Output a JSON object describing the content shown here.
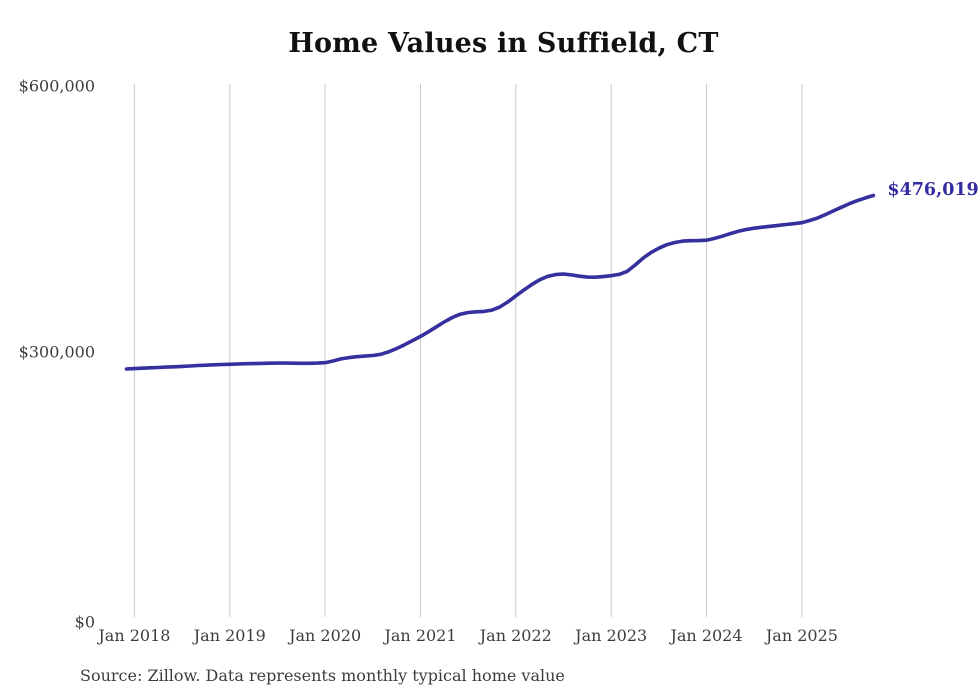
{
  "title": "Home Values in Suffield, CT",
  "source_note": "Source: Zillow. Data represents monthly typical home value",
  "end_label": "$476,019",
  "colors": {
    "line": "#35309e",
    "end_label": "#332da0",
    "grid": "#cbcbcb",
    "axis_text": "#3d3d3d",
    "title_text": "#111111",
    "background": "#ffffff"
  },
  "y_axis": {
    "ticks": [
      {
        "label": "$600,000",
        "value": 600000
      },
      {
        "label": "$300,000",
        "value": 300000
      },
      {
        "label": "$0",
        "value": 0
      }
    ]
  },
  "chart_data": {
    "type": "line",
    "title": "Home Values in Suffield, CT",
    "xlabel": "",
    "ylabel": "",
    "ylim": [
      0,
      600000
    ],
    "y_ticks": [
      0,
      300000,
      600000
    ],
    "grid": "vertical-only",
    "legend": "none",
    "last_point_label": "$476,019",
    "x_tick_labels": [
      "Jan 2018",
      "Jan 2019",
      "Jan 2020",
      "Jan 2021",
      "Jan 2022",
      "Jan 2023",
      "Jan 2024",
      "Jan 2025"
    ],
    "x": [
      "Dec 2017",
      "Jan 2018",
      "Feb 2018",
      "Mar 2018",
      "Apr 2018",
      "May 2018",
      "Jun 2018",
      "Jul 2018",
      "Aug 2018",
      "Sep 2018",
      "Oct 2018",
      "Nov 2018",
      "Dec 2018",
      "Jan 2019",
      "Feb 2019",
      "Mar 2019",
      "Apr 2019",
      "May 2019",
      "Jun 2019",
      "Jul 2019",
      "Aug 2019",
      "Sep 2019",
      "Oct 2019",
      "Nov 2019",
      "Dec 2019",
      "Jan 2020",
      "Feb 2020",
      "Mar 2020",
      "Apr 2020",
      "May 2020",
      "Jun 2020",
      "Jul 2020",
      "Aug 2020",
      "Sep 2020",
      "Oct 2020",
      "Nov 2020",
      "Dec 2020",
      "Jan 2021",
      "Feb 2021",
      "Mar 2021",
      "Apr 2021",
      "May 2021",
      "Jun 2021",
      "Jul 2021",
      "Aug 2021",
      "Sep 2021",
      "Oct 2021",
      "Nov 2021",
      "Dec 2021",
      "Jan 2022",
      "Feb 2022",
      "Mar 2022",
      "Apr 2022",
      "May 2022",
      "Jun 2022",
      "Jul 2022",
      "Aug 2022",
      "Sep 2022",
      "Oct 2022",
      "Nov 2022",
      "Dec 2022",
      "Jan 2023",
      "Feb 2023",
      "Mar 2023",
      "Apr 2023",
      "May 2023",
      "Jun 2023",
      "Jul 2023",
      "Aug 2023",
      "Sep 2023",
      "Oct 2023",
      "Nov 2023",
      "Dec 2023",
      "Jan 2024",
      "Feb 2024",
      "Mar 2024",
      "Apr 2024",
      "May 2024",
      "Jun 2024",
      "Jul 2024",
      "Aug 2024",
      "Sep 2024",
      "Oct 2024",
      "Nov 2024",
      "Dec 2024",
      "Jan 2025",
      "Feb 2025",
      "Mar 2025",
      "Apr 2025",
      "May 2025",
      "Jun 2025",
      "Jul 2025",
      "Aug 2025",
      "Sep 2025",
      "Oct 2025"
    ],
    "values": [
      281500,
      282000,
      282400,
      282800,
      283200,
      283600,
      284000,
      284400,
      284900,
      285400,
      285800,
      286200,
      286500,
      286800,
      287100,
      287400,
      287600,
      287800,
      288000,
      288100,
      288100,
      288000,
      287900,
      287900,
      288100,
      288600,
      290500,
      292800,
      294300,
      295300,
      296000,
      296600,
      298000,
      300800,
      304500,
      308800,
      313300,
      318000,
      323200,
      328800,
      334300,
      339300,
      342900,
      344900,
      345700,
      346100,
      347600,
      351100,
      356700,
      363500,
      370000,
      376200,
      381500,
      385400,
      387400,
      388000,
      387000,
      385600,
      384600,
      384500,
      385100,
      386100,
      387600,
      391000,
      398000,
      405800,
      412000,
      417000,
      420900,
      423400,
      424900,
      425400,
      425500,
      426000,
      428000,
      430400,
      433300,
      435900,
      437900,
      439400,
      440500,
      441500,
      442500,
      443500,
      444500,
      445600,
      448000,
      451000,
      454800,
      458900,
      463000,
      467000,
      470400,
      473400,
      476019
    ]
  }
}
